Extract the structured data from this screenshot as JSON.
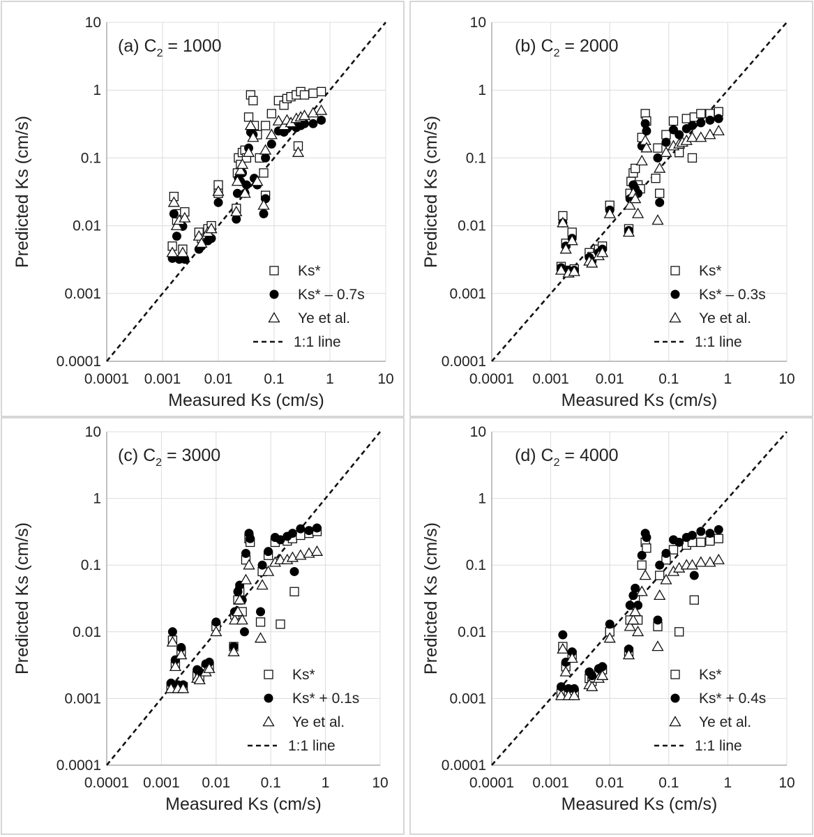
{
  "chart_data": [
    {
      "type": "scatter",
      "panel": "a",
      "title_main": "(a) C",
      "title_sub": "2",
      "title_tail": " = 1000",
      "xlabel": "Measured Ks (cm/s)",
      "ylabel": "Predicted Ks (cm/s)",
      "xscale": "log",
      "yscale": "log",
      "xlim": [
        0.0001,
        10
      ],
      "ylim": [
        0.0001,
        10
      ],
      "ticks": [
        "0.0001",
        "0.001",
        "0.01",
        "0.1",
        "1",
        "10"
      ],
      "legend_position": "bottom-right",
      "series": [
        {
          "name": "Ks*",
          "marker": "square",
          "x": [
            0.0015,
            0.0016,
            0.0018,
            0.002,
            0.0023,
            0.0025,
            0.0045,
            0.005,
            0.0065,
            0.0075,
            0.01,
            0.01,
            0.021,
            0.022,
            0.023,
            0.025,
            0.027,
            0.03,
            0.032,
            0.035,
            0.038,
            0.042,
            0.044,
            0.05,
            0.055,
            0.065,
            0.07,
            0.07,
            0.09,
            0.12,
            0.15,
            0.17,
            0.2,
            0.25,
            0.27,
            0.3,
            0.35,
            0.5,
            0.7
          ],
          "y": [
            0.005,
            0.027,
            0.012,
            0.015,
            0.0045,
            0.016,
            0.008,
            0.0065,
            0.009,
            0.01,
            0.04,
            0.03,
            0.018,
            0.06,
            0.1,
            0.08,
            0.12,
            0.13,
            0.1,
            0.4,
            0.85,
            0.7,
            0.3,
            0.22,
            0.1,
            0.06,
            0.028,
            0.3,
            0.45,
            0.7,
            0.6,
            0.75,
            0.8,
            0.85,
            0.15,
            0.95,
            0.85,
            0.9,
            0.95
          ]
        },
        {
          "name": "Ks* – 0.7s",
          "marker": "circle",
          "x": [
            0.0015,
            0.0016,
            0.0018,
            0.002,
            0.0023,
            0.0025,
            0.0045,
            0.005,
            0.0065,
            0.0075,
            0.01,
            0.021,
            0.022,
            0.023,
            0.025,
            0.027,
            0.03,
            0.032,
            0.035,
            0.038,
            0.042,
            0.044,
            0.05,
            0.065,
            0.07,
            0.07,
            0.09,
            0.12,
            0.15,
            0.17,
            0.2,
            0.25,
            0.3,
            0.35,
            0.5,
            0.7
          ],
          "y": [
            0.0033,
            0.015,
            0.007,
            0.0032,
            0.0098,
            0.0032,
            0.0045,
            0.005,
            0.006,
            0.0065,
            0.022,
            0.0125,
            0.03,
            0.05,
            0.045,
            0.06,
            0.03,
            0.04,
            0.14,
            0.24,
            0.22,
            0.05,
            0.04,
            0.015,
            0.025,
            0.1,
            0.16,
            0.25,
            0.24,
            0.27,
            0.3,
            0.28,
            0.3,
            0.32,
            0.32,
            0.36
          ]
        },
        {
          "name": "Ye et al.",
          "marker": "triangle",
          "x": [
            0.0015,
            0.0016,
            0.0018,
            0.002,
            0.0023,
            0.0025,
            0.0045,
            0.005,
            0.0065,
            0.0075,
            0.01,
            0.021,
            0.022,
            0.025,
            0.027,
            0.03,
            0.035,
            0.038,
            0.042,
            0.05,
            0.065,
            0.07,
            0.09,
            0.12,
            0.15,
            0.17,
            0.2,
            0.25,
            0.27,
            0.3,
            0.35,
            0.5,
            0.7
          ],
          "y": [
            0.004,
            0.022,
            0.01,
            0.012,
            0.004,
            0.013,
            0.007,
            0.0055,
            0.008,
            0.009,
            0.032,
            0.016,
            0.045,
            0.065,
            0.08,
            0.03,
            0.12,
            0.3,
            0.2,
            0.045,
            0.02,
            0.13,
            0.22,
            0.35,
            0.3,
            0.36,
            0.33,
            0.38,
            0.12,
            0.4,
            0.42,
            0.46,
            0.5
          ]
        },
        {
          "name": "1:1 line",
          "line": "dashed",
          "x": [
            0.0001,
            10
          ],
          "y": [
            0.0001,
            10
          ]
        }
      ]
    },
    {
      "type": "scatter",
      "panel": "b",
      "title_main": "(b) C",
      "title_sub": "2",
      "title_tail": " = 2000",
      "xlabel": "Measured Ks (cm/s)",
      "ylabel": "Predicted Ks (cm/s)",
      "xscale": "log",
      "yscale": "log",
      "xlim": [
        0.0001,
        10
      ],
      "ylim": [
        0.0001,
        10
      ],
      "ticks": [
        "0.0001",
        "0.001",
        "0.01",
        "0.1",
        "1",
        "10"
      ],
      "legend_position": "bottom-right",
      "series": [
        {
          "name": "Ks*",
          "marker": "square",
          "x": [
            0.0015,
            0.0016,
            0.0018,
            0.002,
            0.0023,
            0.0025,
            0.0045,
            0.005,
            0.0065,
            0.0075,
            0.01,
            0.021,
            0.022,
            0.023,
            0.025,
            0.027,
            0.03,
            0.033,
            0.035,
            0.04,
            0.042,
            0.06,
            0.065,
            0.07,
            0.09,
            0.12,
            0.15,
            0.2,
            0.25,
            0.27,
            0.35,
            0.5,
            0.7
          ],
          "y": [
            0.0025,
            0.014,
            0.0055,
            0.0022,
            0.008,
            0.0023,
            0.004,
            0.0035,
            0.0045,
            0.005,
            0.02,
            0.009,
            0.03,
            0.045,
            0.06,
            0.07,
            0.04,
            0.035,
            0.2,
            0.45,
            0.35,
            0.05,
            0.14,
            0.03,
            0.22,
            0.35,
            0.12,
            0.38,
            0.1,
            0.4,
            0.45,
            0.45,
            0.48
          ]
        },
        {
          "name": "Ks* – 0.3s",
          "marker": "circle",
          "x": [
            0.0015,
            0.0016,
            0.0018,
            0.002,
            0.0023,
            0.0025,
            0.0045,
            0.005,
            0.0065,
            0.0075,
            0.01,
            0.021,
            0.022,
            0.025,
            0.027,
            0.03,
            0.035,
            0.04,
            0.042,
            0.065,
            0.07,
            0.09,
            0.12,
            0.15,
            0.2,
            0.25,
            0.35,
            0.5,
            0.7
          ],
          "y": [
            0.0024,
            0.011,
            0.005,
            0.0022,
            0.0065,
            0.0022,
            0.0034,
            0.003,
            0.004,
            0.0045,
            0.017,
            0.0085,
            0.025,
            0.04,
            0.035,
            0.03,
            0.15,
            0.32,
            0.25,
            0.1,
            0.022,
            0.17,
            0.26,
            0.22,
            0.27,
            0.3,
            0.33,
            0.36,
            0.38
          ]
        },
        {
          "name": "Ye et al.",
          "marker": "triangle",
          "x": [
            0.0015,
            0.0016,
            0.0018,
            0.002,
            0.0023,
            0.0025,
            0.0045,
            0.005,
            0.0065,
            0.0075,
            0.01,
            0.021,
            0.022,
            0.025,
            0.027,
            0.03,
            0.035,
            0.04,
            0.042,
            0.065,
            0.07,
            0.09,
            0.12,
            0.15,
            0.17,
            0.2,
            0.25,
            0.35,
            0.5,
            0.7
          ],
          "y": [
            0.0022,
            0.011,
            0.0045,
            0.002,
            0.006,
            0.0021,
            0.003,
            0.0028,
            0.0036,
            0.004,
            0.015,
            0.008,
            0.02,
            0.03,
            0.025,
            0.015,
            0.09,
            0.18,
            0.14,
            0.012,
            0.07,
            0.12,
            0.15,
            0.16,
            0.17,
            0.18,
            0.2,
            0.2,
            0.22,
            0.25
          ]
        },
        {
          "name": "1:1 line",
          "line": "dashed",
          "x": [
            0.0001,
            10
          ],
          "y": [
            0.0001,
            10
          ]
        }
      ]
    },
    {
      "type": "scatter",
      "panel": "c",
      "title_main": "(c) C",
      "title_sub": "2",
      "title_tail": " = 3000",
      "xlabel": "Measured Ks (cm/s)",
      "ylabel": "Predicted Ks (cm/s)",
      "xscale": "log",
      "yscale": "log",
      "xlim": [
        0.0001,
        10
      ],
      "ylim": [
        0.0001,
        10
      ],
      "ticks": [
        "0.0001",
        "0.001",
        "0.01",
        "0.1",
        "1",
        "10"
      ],
      "legend_position": "bottom-right",
      "series": [
        {
          "name": "Ks*",
          "marker": "square",
          "x": [
            0.0015,
            0.0016,
            0.0018,
            0.002,
            0.0023,
            0.0025,
            0.0045,
            0.005,
            0.0065,
            0.0075,
            0.01,
            0.021,
            0.022,
            0.025,
            0.027,
            0.03,
            0.035,
            0.04,
            0.042,
            0.065,
            0.07,
            0.09,
            0.12,
            0.15,
            0.2,
            0.25,
            0.27,
            0.35,
            0.5,
            0.7
          ],
          "y": [
            0.0015,
            0.0075,
            0.0033,
            0.0015,
            0.005,
            0.0015,
            0.0022,
            0.002,
            0.0028,
            0.003,
            0.012,
            0.006,
            0.018,
            0.03,
            0.04,
            0.02,
            0.12,
            0.25,
            0.22,
            0.014,
            0.08,
            0.14,
            0.22,
            0.013,
            0.23,
            0.25,
            0.04,
            0.28,
            0.3,
            0.32
          ]
        },
        {
          "name": "Ks* + 0.1s",
          "marker": "circle",
          "x": [
            0.0015,
            0.0016,
            0.0018,
            0.002,
            0.0023,
            0.0025,
            0.0045,
            0.005,
            0.0065,
            0.0075,
            0.01,
            0.021,
            0.022,
            0.025,
            0.027,
            0.03,
            0.033,
            0.035,
            0.04,
            0.042,
            0.065,
            0.07,
            0.09,
            0.12,
            0.15,
            0.2,
            0.25,
            0.27,
            0.35,
            0.5,
            0.7
          ],
          "y": [
            0.0017,
            0.01,
            0.0038,
            0.0016,
            0.0058,
            0.0016,
            0.0027,
            0.0025,
            0.0033,
            0.0035,
            0.014,
            0.006,
            0.02,
            0.04,
            0.05,
            0.03,
            0.01,
            0.15,
            0.3,
            0.25,
            0.02,
            0.1,
            0.16,
            0.26,
            0.24,
            0.27,
            0.3,
            0.08,
            0.35,
            0.33,
            0.36
          ]
        },
        {
          "name": "Ye et al.",
          "marker": "triangle",
          "x": [
            0.0015,
            0.0016,
            0.0018,
            0.002,
            0.0023,
            0.0025,
            0.0045,
            0.005,
            0.0065,
            0.0075,
            0.01,
            0.021,
            0.022,
            0.025,
            0.027,
            0.03,
            0.035,
            0.04,
            0.065,
            0.07,
            0.09,
            0.12,
            0.15,
            0.2,
            0.25,
            0.35,
            0.5,
            0.7
          ],
          "y": [
            0.0014,
            0.007,
            0.003,
            0.0014,
            0.0045,
            0.0014,
            0.002,
            0.0019,
            0.0025,
            0.0028,
            0.01,
            0.005,
            0.015,
            0.02,
            0.03,
            0.015,
            0.06,
            0.1,
            0.008,
            0.05,
            0.08,
            0.11,
            0.12,
            0.12,
            0.13,
            0.14,
            0.15,
            0.16
          ]
        },
        {
          "name": "1:1 line",
          "line": "dashed",
          "x": [
            0.0001,
            10
          ],
          "y": [
            0.0001,
            10
          ]
        }
      ]
    },
    {
      "type": "scatter",
      "panel": "d",
      "title_main": "(d) C",
      "title_sub": "2",
      "title_tail": " = 4000",
      "xlabel": "Measured Ks (cm/s)",
      "ylabel": "Predicted Ks (cm/s)",
      "xscale": "log",
      "yscale": "log",
      "xlim": [
        0.0001,
        10
      ],
      "ylim": [
        0.0001,
        10
      ],
      "ticks": [
        "0.0001",
        "0.001",
        "0.01",
        "0.1",
        "1",
        "10"
      ],
      "legend_position": "bottom-right",
      "series": [
        {
          "name": "Ks*",
          "marker": "square",
          "x": [
            0.0015,
            0.0016,
            0.0018,
            0.002,
            0.0023,
            0.0025,
            0.0045,
            0.005,
            0.0065,
            0.0075,
            0.01,
            0.021,
            0.022,
            0.025,
            0.027,
            0.03,
            0.035,
            0.04,
            0.042,
            0.065,
            0.07,
            0.09,
            0.12,
            0.15,
            0.2,
            0.25,
            0.27,
            0.35,
            0.5,
            0.7
          ],
          "y": [
            0.0012,
            0.006,
            0.003,
            0.0012,
            0.0045,
            0.0012,
            0.002,
            0.0018,
            0.0024,
            0.0027,
            0.01,
            0.005,
            0.015,
            0.025,
            0.03,
            0.015,
            0.1,
            0.22,
            0.18,
            0.012,
            0.07,
            0.12,
            0.17,
            0.01,
            0.2,
            0.22,
            0.03,
            0.22,
            0.23,
            0.25
          ]
        },
        {
          "name": "Ks* + 0.4s",
          "marker": "circle",
          "x": [
            0.0015,
            0.0016,
            0.0018,
            0.002,
            0.0023,
            0.0025,
            0.0045,
            0.005,
            0.0065,
            0.0075,
            0.01,
            0.021,
            0.022,
            0.025,
            0.027,
            0.03,
            0.035,
            0.04,
            0.042,
            0.065,
            0.07,
            0.09,
            0.12,
            0.15,
            0.2,
            0.25,
            0.27,
            0.35,
            0.5,
            0.7
          ],
          "y": [
            0.0015,
            0.009,
            0.0035,
            0.0014,
            0.005,
            0.0014,
            0.0025,
            0.0022,
            0.0028,
            0.003,
            0.013,
            0.0055,
            0.025,
            0.035,
            0.045,
            0.025,
            0.14,
            0.3,
            0.26,
            0.015,
            0.1,
            0.15,
            0.24,
            0.22,
            0.26,
            0.28,
            0.07,
            0.32,
            0.3,
            0.34
          ]
        },
        {
          "name": "Ye et al.",
          "marker": "triangle",
          "x": [
            0.0015,
            0.0016,
            0.0018,
            0.002,
            0.0023,
            0.0025,
            0.0045,
            0.005,
            0.0065,
            0.0075,
            0.01,
            0.021,
            0.022,
            0.025,
            0.027,
            0.03,
            0.035,
            0.04,
            0.065,
            0.07,
            0.09,
            0.12,
            0.15,
            0.2,
            0.25,
            0.35,
            0.5,
            0.7
          ],
          "y": [
            0.0011,
            0.0055,
            0.0025,
            0.0011,
            0.004,
            0.0011,
            0.0016,
            0.0015,
            0.002,
            0.0022,
            0.008,
            0.0045,
            0.012,
            0.015,
            0.02,
            0.01,
            0.04,
            0.07,
            0.006,
            0.035,
            0.06,
            0.08,
            0.09,
            0.1,
            0.1,
            0.11,
            0.11,
            0.12
          ]
        },
        {
          "name": "1:1 line",
          "line": "dashed",
          "x": [
            0.0001,
            10
          ],
          "y": [
            0.0001,
            10
          ]
        }
      ]
    }
  ]
}
